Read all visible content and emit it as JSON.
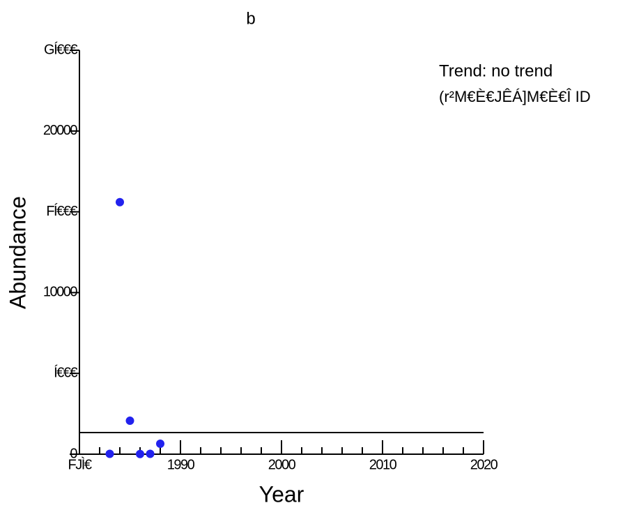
{
  "chart_data": {
    "type": "scatter",
    "title": "b",
    "xlabel": "Year",
    "ylabel": "Abundance",
    "annotation": "Trend: no trend",
    "annotation_stats": "(r²M€È€JÊÁ]M€È€Î ID",
    "x": [
      1983,
      1984,
      1985,
      1986,
      1987,
      1988
    ],
    "values": [
      20,
      15600,
      2070,
      10,
      20,
      650
    ],
    "color": "#2222ee",
    "trend_line": 1340,
    "xlim": [
      1980,
      2020
    ],
    "xticks": [
      {
        "value": 1980,
        "label": "FJÌ€"
      },
      1990,
      2000,
      2010,
      2020
    ],
    "xminorticks": [
      1982,
      1984,
      1986,
      1988,
      1992,
      1994,
      1996,
      1998,
      2002,
      2004,
      2006,
      2008,
      2012,
      2014,
      2016,
      2018
    ],
    "ylim": [
      0,
      25000
    ],
    "yticks": [
      0,
      {
        "value": 5000,
        "label": "Í€€€"
      },
      10000,
      {
        "value": 15000,
        "label": "FÍ€€€"
      },
      20000,
      {
        "value": 25000,
        "label": "GÍ€€€"
      }
    ]
  }
}
